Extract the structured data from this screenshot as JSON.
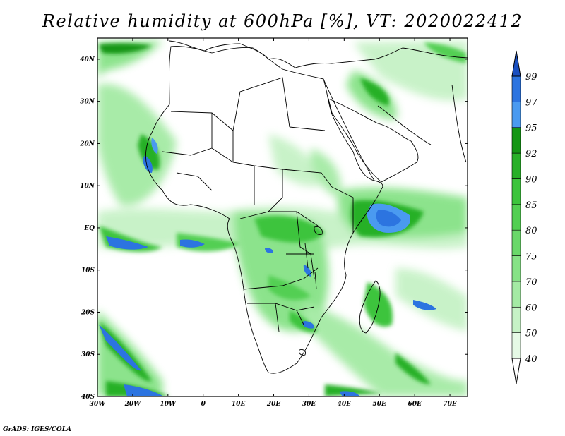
{
  "title": "Relative humidity at 600hPa [%], VT: 2020022412",
  "footer": "GrADS: IGES/COLA",
  "map": {
    "projection": "lat-lon",
    "lon_range": [
      -30,
      75
    ],
    "lat_range": [
      -40,
      45
    ],
    "lat_labels": [
      "40N",
      "30N",
      "20N",
      "10N",
      "EQ",
      "10S",
      "20S",
      "30S",
      "40S"
    ],
    "lon_labels": [
      "30W",
      "20W",
      "10W",
      "0",
      "10E",
      "20E",
      "30E",
      "40E",
      "50E",
      "60E",
      "70E"
    ]
  },
  "colorbar": {
    "levels": [
      "40",
      "50",
      "60",
      "70",
      "75",
      "80",
      "85",
      "90",
      "92",
      "95",
      "97",
      "99"
    ],
    "colors": [
      "#e6fae6",
      "#c6f2c6",
      "#a4eaa4",
      "#86e286",
      "#6ad86a",
      "#52cf52",
      "#3cc43c",
      "#28b028",
      "#149614",
      "#4a9af0",
      "#2c74e0",
      "#1a4fc0"
    ],
    "low_color": "#ffffff",
    "high_color": "#1a4fc0"
  }
}
